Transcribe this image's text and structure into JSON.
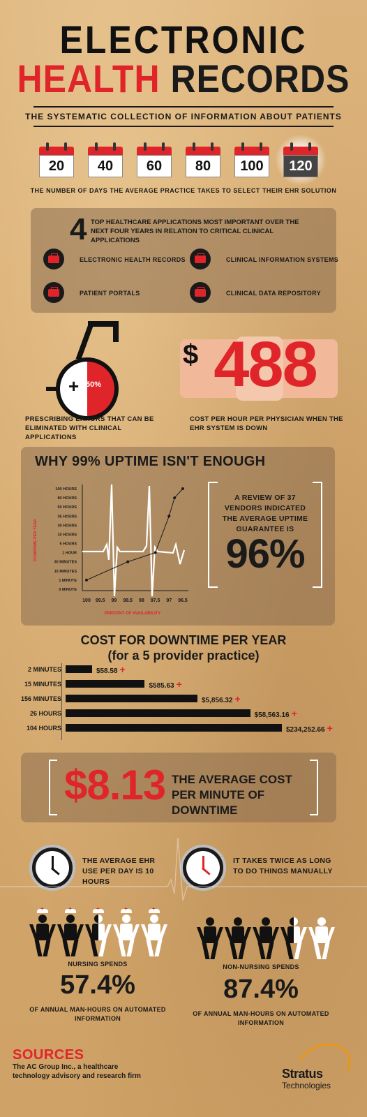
{
  "header": {
    "title_line1": "ELECTRONIC",
    "title_red": "HEALTH",
    "title_black": "RECORDS",
    "subtitle": "THE SYSTEMATIC COLLECTION OF INFORMATION ABOUT PATIENTS"
  },
  "days": {
    "calendars": [
      "20",
      "40",
      "60",
      "80",
      "100",
      "120"
    ],
    "highlighted": "120",
    "caption": "THE NUMBER OF DAYS THE AVERAGE PRACTICE TAKES TO SELECT THEIR EHR SOLUTION"
  },
  "apps": {
    "count": "4",
    "heading": "TOP HEALTHCARE APPLICATIONS MOST IMPORTANT OVER THE NEXT FOUR YEARS IN RELATION TO CRITICAL CLINICAL APPLICATIONS",
    "items": [
      "ELECTRONIC HEALTH RECORDS",
      "CLINICAL INFORMATION SYSTEMS",
      "PATIENT PORTALS",
      "CLINICAL DATA REPOSITORY"
    ]
  },
  "errors": {
    "plus": "+",
    "percent": "50%",
    "caption": "PRESCRIBING ERRORS THAT CAN BE ELIMINATED WITH CLINICAL APPLICATIONS"
  },
  "cost_hour": {
    "dollar": "$",
    "amount": "488",
    "caption": "COST PER HOUR PER PHYSICIAN WHEN THE EHR SYSTEM IS DOWN"
  },
  "uptime": {
    "title": "WHY 99% UPTIME ISN'T ENOUGH",
    "review_text": "A REVIEW OF 37 VENDORS INDICATED THE AVERAGE UPTIME GUARANTEE IS",
    "review_pct": "96%"
  },
  "chart_data": {
    "type": "line",
    "xlabel": "PERCENT OF AVAILABILITY",
    "ylabel": "DOWNTIME PER YEAR",
    "x_ticks": [
      "100",
      "99.5",
      "99",
      "98.5",
      "98",
      "97.5",
      "97",
      "96.5"
    ],
    "y_ticks": [
      "0 MINUTE",
      "1 MINUTE",
      "15 MINUTES",
      "30 MINUTES",
      "1 HOUR",
      "5 HOURS",
      "10 HOURS",
      "30 HOURS",
      "35 HOURS",
      "50 HOURS",
      "80 HOURS",
      "100 HOURS"
    ],
    "points": [
      {
        "x": "100",
        "y": "1 MINUTE"
      },
      {
        "x": "98.5",
        "y": "30 MINUTES"
      },
      {
        "x": "97.5",
        "y": "1 HOUR"
      },
      {
        "x": "97",
        "y": "35 HOURS"
      },
      {
        "x": "96.8",
        "y": "80 HOURS"
      },
      {
        "x": "96.5",
        "y": "100 HOURS"
      }
    ],
    "colors": {
      "line": "#1a1a1a",
      "ekg": "#ffffff"
    }
  },
  "downtime_costs": {
    "title_line1": "COST FOR DOWNTIME PER YEAR",
    "title_line2": "(for a 5 provider practice)",
    "rows": [
      {
        "label": "2 MINUTES",
        "value": "$58.58",
        "amount": 58.58
      },
      {
        "label": "15 MINUTES",
        "value": "$585.63",
        "amount": 585.63
      },
      {
        "label": "156 MINUTES",
        "value": "$5,856.32",
        "amount": 5856.32
      },
      {
        "label": "26 HOURS",
        "value": "$58,563.16",
        "amount": 58563.16
      },
      {
        "label": "104 HOURS",
        "value": "$234,252.66",
        "amount": 234252.66
      }
    ],
    "plus": "+"
  },
  "per_minute": {
    "amount": "$8.13",
    "text": "THE AVERAGE COST PER MINUTE OF DOWNTIME"
  },
  "usage": {
    "left_text": "THE AVERAGE EHR USE PER DAY IS 10 HOURS",
    "right_text": "IT TAKES TWICE AS LONG TO DO THINGS MANUALLY"
  },
  "nursing": {
    "label": "NURSING SPENDS",
    "pct": "57.4%",
    "desc": "OF ANNUAL MAN-HOURS ON AUTOMATED INFORMATION"
  },
  "non_nursing": {
    "label": "NON-NURSING SPENDS",
    "pct": "87.4%",
    "desc": "OF ANNUAL MAN-HOURS ON AUTOMATED INFORMATION"
  },
  "sources": {
    "title": "SOURCES",
    "text": "The AC Group Inc., a healthcare technology advisory and research firm"
  },
  "logo": {
    "name": "Stratus",
    "sub": "Technologies",
    "accent": "#e8961a"
  },
  "colors": {
    "accent": "#e0252a",
    "background": "#d8ad74"
  }
}
